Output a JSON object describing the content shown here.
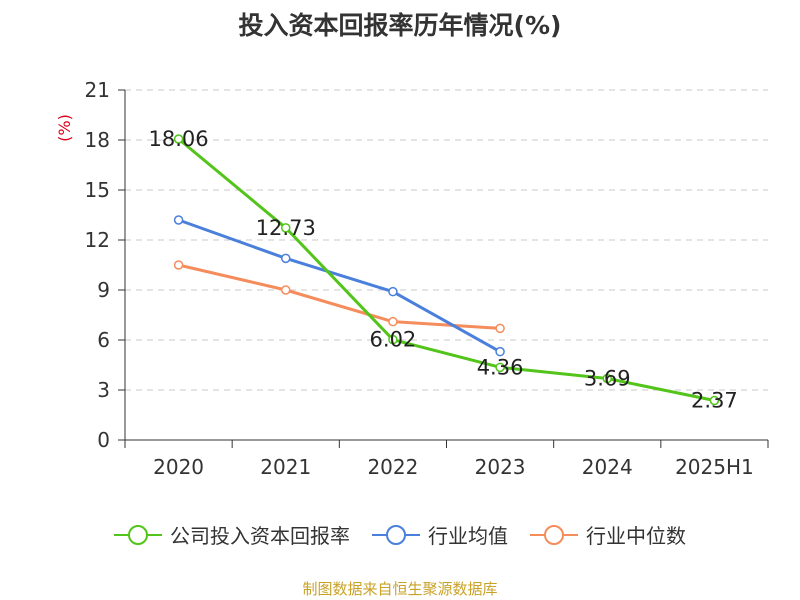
{
  "chart_data": {
    "type": "line",
    "title": "投入资本回报率历年情况(%)",
    "ylabel": "(%)",
    "categories": [
      "2020",
      "2021",
      "2022",
      "2023",
      "2024",
      "2025H1"
    ],
    "ylim": [
      0,
      21
    ],
    "yticks": [
      0,
      3,
      6,
      9,
      12,
      15,
      18,
      21
    ],
    "grid": true,
    "legend_position": "bottom",
    "series": [
      {
        "name": "公司投入资本回报率",
        "color": "#52c41a",
        "values": [
          18.06,
          12.73,
          6.02,
          4.36,
          3.69,
          2.37
        ],
        "labels": [
          "18.06",
          "12.73",
          "6.02",
          "4.36",
          "3.69",
          "2.37"
        ]
      },
      {
        "name": "行业均值",
        "color": "#4a7fdb",
        "values": [
          13.2,
          10.9,
          8.9,
          5.3,
          null,
          null
        ]
      },
      {
        "name": "行业中位数",
        "color": "#f58c5b",
        "values": [
          10.5,
          9.0,
          7.1,
          6.7,
          null,
          null
        ]
      }
    ]
  },
  "source": "制图数据来自恒生聚源数据库"
}
